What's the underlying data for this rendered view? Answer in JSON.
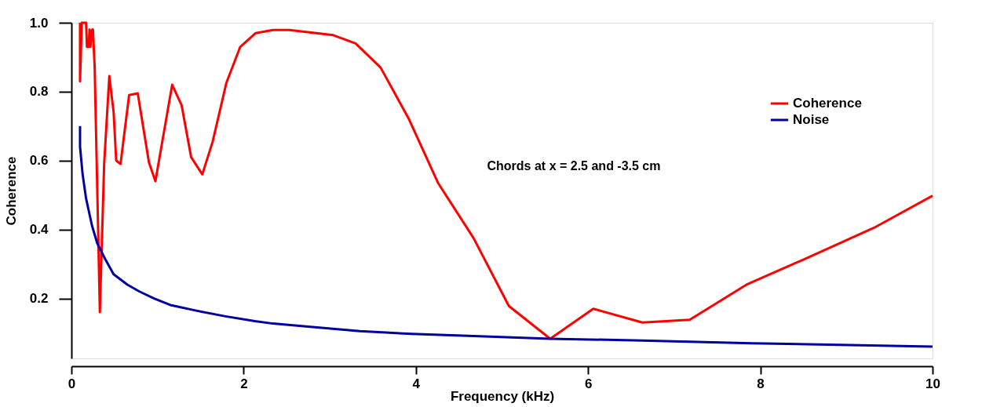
{
  "chart_data": {
    "type": "line",
    "xlabel": "Frequency (kHz)",
    "ylabel": "Coherence",
    "annotations": [
      "Chords at x = 2.5 and -3.5 cm"
    ],
    "xlim": [
      0,
      10
    ],
    "ylim": [
      0.026,
      1.0
    ],
    "xticks": [
      0,
      2,
      4,
      6,
      8,
      10
    ],
    "yticks": [
      0.2,
      0.4,
      0.6,
      0.8,
      {
        "value": 1.0,
        "label": "1.0"
      }
    ],
    "grid": false,
    "legend": "top right",
    "line_style": "solid",
    "marker": "none",
    "series": [
      {
        "name": "Coherence",
        "color": "#ff0000",
        "x": [
          0.1,
          0.1,
          0.12,
          0.17,
          0.18,
          0.2,
          0.21,
          0.22,
          0.24,
          0.25,
          0.27,
          0.33,
          0.38,
          0.44,
          0.49,
          0.52,
          0.57,
          0.67,
          0.77,
          0.9,
          0.975,
          1.17,
          1.28,
          1.39,
          1.52,
          1.64,
          1.8,
          1.96,
          2.14,
          2.34,
          2.53,
          3.04,
          3.3,
          3.59,
          3.92,
          4.26,
          4.67,
          5.08,
          5.56,
          6.06,
          6.63,
          7.18,
          7.84,
          8.54,
          9.32,
          10.0
        ],
        "values": [
          1.0,
          0.83,
          1.0,
          1.0,
          0.93,
          0.93,
          0.98,
          0.93,
          0.98,
          0.98,
          0.87,
          0.16,
          0.59,
          0.845,
          0.74,
          0.6,
          0.59,
          0.79,
          0.795,
          0.595,
          0.54,
          0.82,
          0.76,
          0.61,
          0.56,
          0.655,
          0.826,
          0.93,
          0.97,
          0.979,
          0.979,
          0.964,
          0.94,
          0.87,
          0.72,
          0.534,
          0.375,
          0.178,
          0.083,
          0.17,
          0.13,
          0.138,
          0.24,
          0.317,
          0.405,
          0.498
        ]
      },
      {
        "name": "Noise",
        "color": "#0000a0",
        "x": [
          0.1,
          0.1,
          0.13,
          0.17,
          0.24,
          0.3,
          0.39,
          0.49,
          0.65,
          0.79,
          0.96,
          1.16,
          1.46,
          1.79,
          2.13,
          2.34,
          2.8,
          3.35,
          3.95,
          4.8,
          5.56,
          6.63,
          7.9,
          10.0
        ],
        "values": [
          0.7,
          0.64,
          0.56,
          0.49,
          0.41,
          0.36,
          0.315,
          0.27,
          0.24,
          0.22,
          0.2,
          0.18,
          0.164,
          0.148,
          0.134,
          0.127,
          0.117,
          0.105,
          0.097,
          0.09,
          0.083,
          0.078,
          0.07,
          0.06
        ]
      }
    ]
  }
}
